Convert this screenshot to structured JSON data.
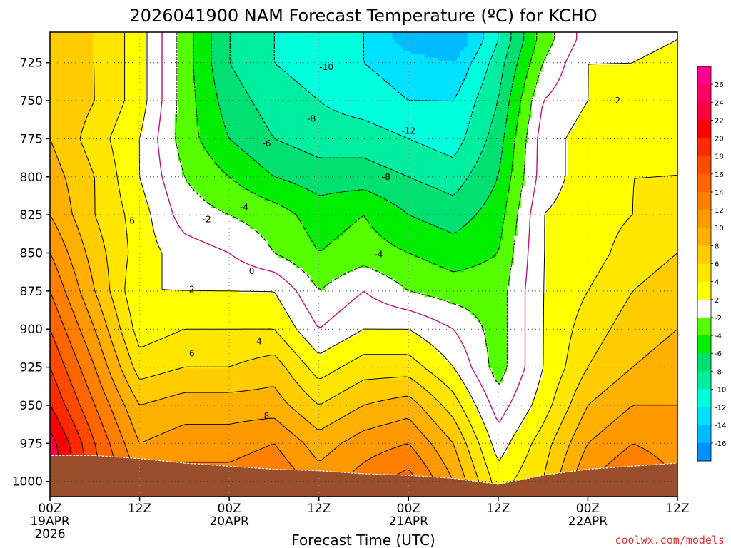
{
  "chart_data": {
    "type": "heatmap",
    "title": "2026041900 NAM Forecast Temperature (ºC) for KCHO",
    "xlabel": "Forecast Time (UTC)",
    "ylabel": "",
    "x_unit": "forecast hour",
    "xlim": [
      0,
      84
    ],
    "ylim": [
      1010,
      705
    ],
    "y_ticks": [
      725,
      750,
      775,
      800,
      825,
      850,
      875,
      900,
      925,
      950,
      975,
      1000
    ],
    "x_ticks": [
      {
        "hour": 0,
        "label": "00Z",
        "date": "19APR",
        "year": "2026"
      },
      {
        "hour": 12,
        "label": "12Z",
        "date": "",
        "year": ""
      },
      {
        "hour": 24,
        "label": "00Z",
        "date": "20APR",
        "year": ""
      },
      {
        "hour": 36,
        "label": "12Z",
        "date": "",
        "year": ""
      },
      {
        "hour": 48,
        "label": "00Z",
        "date": "21APR",
        "year": ""
      },
      {
        "hour": 60,
        "label": "12Z",
        "date": "",
        "year": ""
      },
      {
        "hour": 72,
        "label": "00Z",
        "date": "22APR",
        "year": ""
      },
      {
        "hour": 84,
        "label": "12Z",
        "date": "",
        "year": ""
      }
    ],
    "grid": true,
    "colorbar": {
      "placement": "right",
      "labels": [
        "26",
        "24",
        "22",
        "20",
        "18",
        "16",
        "14",
        "12",
        "10",
        "8",
        "6",
        "4",
        "2",
        "-2",
        "-4",
        "-6",
        "-8",
        "-10",
        "-12",
        "-14",
        "-16"
      ],
      "colors": [
        "#ff0090",
        "#ff0066",
        "#ff0040",
        "#ff0000",
        "#ff2a00",
        "#ff4a00",
        "#ff6600",
        "#ff8000",
        "#ff9900",
        "#ffb000",
        "#ffcc00",
        "#ffe600",
        "#ffff00",
        "#ffffff",
        "#55ff00",
        "#00ee00",
        "#00e070",
        "#00eea0",
        "#00ffdd",
        "#00e0ff",
        "#00bbff",
        "#0090ff"
      ]
    },
    "hours": [
      0,
      6,
      12,
      18,
      24,
      30,
      36,
      42,
      48,
      54,
      60,
      66,
      72,
      78,
      84
    ],
    "pressure_levels": [
      1000,
      975,
      950,
      925,
      900,
      875,
      850,
      825,
      800,
      775,
      750,
      725,
      710
    ],
    "temperature": [
      [
        24,
        17,
        12,
        13,
        13,
        14,
        11,
        13,
        15,
        10,
        3,
        6,
        12,
        14,
        12
      ],
      [
        23,
        16,
        10,
        11,
        11,
        12,
        9,
        11,
        12,
        8,
        1,
        5,
        10,
        12,
        11
      ],
      [
        20,
        14,
        8,
        9,
        9,
        9,
        6,
        8,
        9,
        5,
        -1,
        3,
        8,
        10,
        10
      ],
      [
        18,
        12,
        5,
        6,
        6,
        7,
        3,
        5,
        5,
        2,
        -3,
        2,
        6,
        8,
        9
      ],
      [
        16,
        10,
        3,
        4,
        4,
        4,
        0,
        2,
        2,
        0,
        -3,
        2,
        5,
        7,
        8
      ],
      [
        14,
        8,
        2,
        2,
        2,
        2,
        -2,
        0,
        -2,
        -3,
        -3,
        2,
        4,
        6,
        7
      ],
      [
        12,
        7,
        3,
        1,
        0,
        -2,
        -4,
        -3,
        -4,
        -5,
        -4,
        2,
        3,
        5,
        6
      ],
      [
        10,
        6,
        3,
        -1,
        -2,
        -3,
        -5,
        -4,
        -6,
        -7,
        -5,
        2,
        3,
        4,
        5
      ],
      [
        9,
        6,
        2,
        -2,
        -4,
        -6,
        -7,
        -7,
        -8,
        -9,
        -6,
        1,
        3,
        4,
        4
      ],
      [
        8,
        5,
        2,
        -3,
        -6,
        -8,
        -9,
        -9,
        -10,
        -11,
        -7,
        1,
        3,
        3,
        4
      ],
      [
        8,
        6,
        3,
        -3,
        -7,
        -9,
        -10,
        -11,
        -12,
        -12,
        -8,
        0,
        2,
        3,
        3
      ],
      [
        7,
        6,
        3,
        -3,
        -8,
        -10,
        -11,
        -12,
        -13,
        -14,
        -9,
        -2,
        2,
        2,
        3
      ],
      [
        7,
        6,
        3,
        -3,
        -8,
        -10,
        -11,
        -12,
        -15,
        -16,
        -10,
        -3,
        1,
        1,
        2
      ]
    ],
    "surface_pressure": [
      983,
      983,
      985,
      988,
      990,
      992,
      993,
      995,
      996,
      998,
      1002,
      996,
      992,
      990,
      988
    ],
    "contour_labels": [
      {
        "text": "-10",
        "hour": 37,
        "p": 728
      },
      {
        "text": "-8",
        "hour": 35,
        "p": 762
      },
      {
        "text": "-12",
        "hour": 48,
        "p": 770
      },
      {
        "text": "-6",
        "hour": 29,
        "p": 778
      },
      {
        "text": "-8",
        "hour": 45,
        "p": 800
      },
      {
        "text": "-4",
        "hour": 26,
        "p": 820
      },
      {
        "text": "-2",
        "hour": 21,
        "p": 828
      },
      {
        "text": "6",
        "hour": 11,
        "p": 829
      },
      {
        "text": "-4",
        "hour": 44,
        "p": 851
      },
      {
        "text": "0",
        "hour": 27,
        "p": 862
      },
      {
        "text": "2",
        "hour": 19,
        "p": 874
      },
      {
        "text": "2",
        "hour": 76,
        "p": 750
      },
      {
        "text": "4",
        "hour": 28,
        "p": 908
      },
      {
        "text": "6",
        "hour": 19,
        "p": 916
      },
      {
        "text": "8",
        "hour": 29,
        "p": 957
      }
    ]
  },
  "credit": "coolwx.com/models"
}
